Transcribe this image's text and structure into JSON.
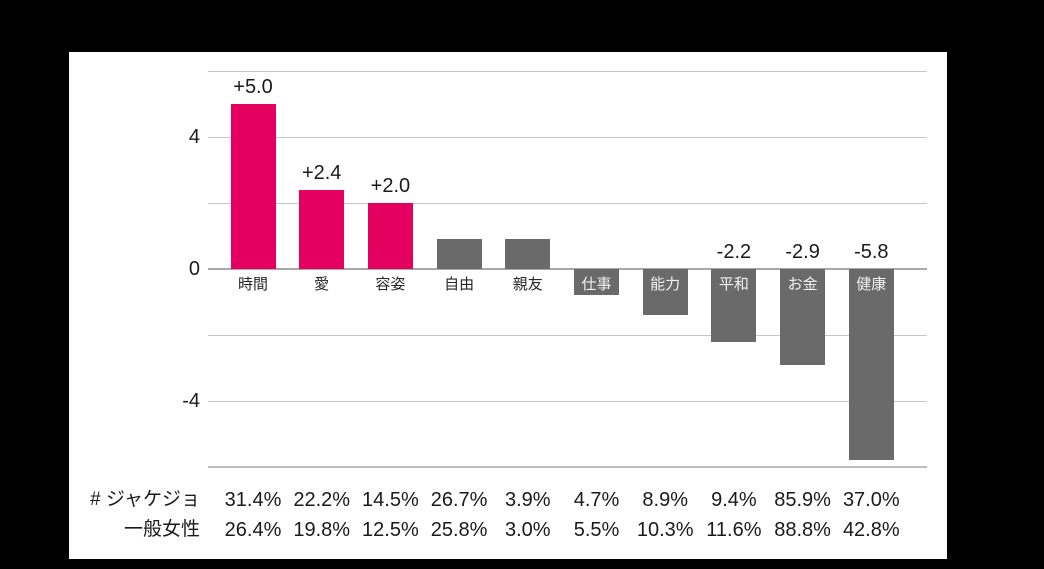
{
  "colors": {
    "background": "#000000",
    "panel": "#ffffff",
    "bar_highlight": "#e4005e",
    "bar_default": "#6a6a6a",
    "gridline": "#c6c6c6",
    "zero_line": "#a8a8a8",
    "text": "#1a1a1a",
    "label_on_bar": "#f2f2f2"
  },
  "chart_data": {
    "type": "bar",
    "title": "",
    "xlabel": "",
    "ylabel": "",
    "categories": [
      "時間",
      "愛",
      "容姿",
      "自由",
      "親友",
      "仕事",
      "能力",
      "平和",
      "お金",
      "健康"
    ],
    "values": [
      5.0,
      2.4,
      2.0,
      0.9,
      0.9,
      -0.8,
      -1.4,
      -2.2,
      -2.9,
      -5.8
    ],
    "bar_value_labels": [
      "+5.0",
      "+2.4",
      "+2.0",
      "",
      "",
      "",
      "",
      "-2.2",
      "-2.9",
      "-5.8"
    ],
    "bar_colors": [
      "#e4005e",
      "#e4005e",
      "#e4005e",
      "#6a6a6a",
      "#6a6a6a",
      "#6a6a6a",
      "#6a6a6a",
      "#6a6a6a",
      "#6a6a6a",
      "#6a6a6a"
    ],
    "ylim": [
      -6,
      6
    ],
    "grid_step": 2,
    "grid": true,
    "legend_position": "none",
    "y_ticks": [
      {
        "value": 4,
        "label": "4"
      },
      {
        "value": 0,
        "label": "0"
      },
      {
        "value": -4,
        "label": "-4"
      }
    ],
    "table": {
      "rows": [
        {
          "label": "# ジャケジョ",
          "values": [
            "31.4%",
            "22.2%",
            "14.5%",
            "26.7%",
            "3.9%",
            "4.7%",
            "8.9%",
            "9.4%",
            "85.9%",
            "37.0%"
          ]
        },
        {
          "label": "一般女性",
          "values": [
            "26.4%",
            "19.8%",
            "12.5%",
            "25.8%",
            "3.0%",
            "5.5%",
            "10.3%",
            "11.6%",
            "88.8%",
            "42.8%"
          ]
        }
      ]
    }
  }
}
